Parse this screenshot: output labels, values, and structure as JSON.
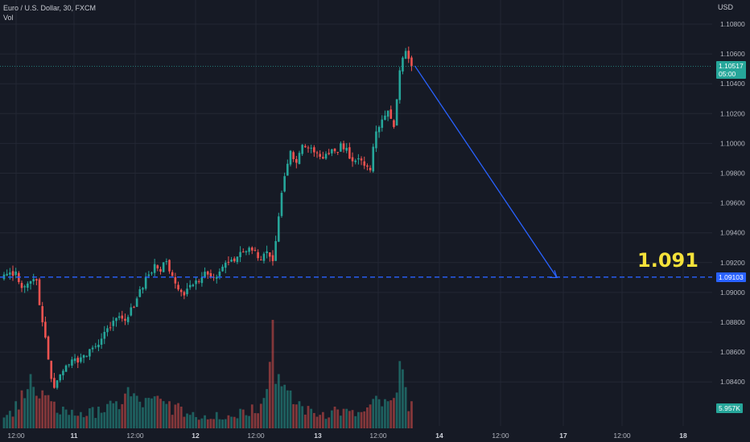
{
  "legend": {
    "title": "Euro / U.S. Dollar, 30, FXCM",
    "volume_label": "Vol"
  },
  "currency": "USD",
  "price_axis": {
    "ticks": [
      "1.10800",
      "1.10600",
      "1.10400",
      "1.10200",
      "1.10000",
      "1.09800",
      "1.09600",
      "1.09400",
      "1.09200",
      "1.09000",
      "1.08800",
      "1.08600",
      "1.08400"
    ]
  },
  "time_axis": {
    "ticks": [
      "12:00",
      "11",
      "12:00",
      "12",
      "12:00",
      "13",
      "12:00",
      "14",
      "12:00",
      "17",
      "12:00",
      "18"
    ]
  },
  "last_price": {
    "price": "1.10517",
    "countdown": "05:00",
    "color": "#26a69a"
  },
  "target_line": {
    "price": "1.09103",
    "label": "1.091",
    "color": "#2962ff",
    "label_color": "#f5e23a"
  },
  "volume_tag": {
    "value": "5.957K",
    "color": "#26a69a"
  },
  "colors": {
    "up": "#26a69a",
    "down": "#ef5350",
    "background": "#161a25",
    "arrow": "#2962ff"
  },
  "chart_data": {
    "type": "candlestick",
    "symbol": "EUR/USD",
    "timeframe": "30",
    "ylim": [
      1.0825,
      1.1095
    ],
    "path": [
      [
        0,
        1.0912
      ],
      [
        4,
        1.0914
      ],
      [
        6,
        1.0903
      ],
      [
        8,
        1.0906
      ],
      [
        10,
        1.0909
      ],
      [
        11,
        1.0908
      ],
      [
        13,
        1.088
      ],
      [
        15,
        1.0855
      ],
      [
        16,
        1.0842
      ],
      [
        17,
        1.0836
      ],
      [
        19,
        1.0845
      ],
      [
        21,
        1.0851
      ],
      [
        23,
        1.0855
      ],
      [
        25,
        1.0853
      ],
      [
        27,
        1.0858
      ],
      [
        29,
        1.0862
      ],
      [
        31,
        1.0864
      ],
      [
        33,
        1.0869
      ],
      [
        35,
        1.0876
      ],
      [
        37,
        1.0881
      ],
      [
        39,
        1.0884
      ],
      [
        41,
        1.0881
      ],
      [
        43,
        1.089
      ],
      [
        45,
        1.0896
      ],
      [
        47,
        1.0903
      ],
      [
        49,
        1.0912
      ],
      [
        51,
        1.0919
      ],
      [
        53,
        1.0914
      ],
      [
        55,
        1.0921
      ],
      [
        57,
        1.0911
      ],
      [
        59,
        1.0902
      ],
      [
        61,
        1.0898
      ],
      [
        63,
        1.0905
      ],
      [
        65,
        1.0908
      ],
      [
        67,
        1.091
      ],
      [
        69,
        1.0912
      ],
      [
        71,
        1.091
      ],
      [
        73,
        1.0914
      ],
      [
        75,
        1.092
      ],
      [
        77,
        1.0922
      ],
      [
        79,
        1.0924
      ],
      [
        81,
        1.0927
      ],
      [
        83,
        1.093
      ],
      [
        85,
        1.0928
      ],
      [
        86,
        1.0923
      ],
      [
        88,
        1.0926
      ],
      [
        90,
        1.0924
      ],
      [
        91,
        1.0921
      ],
      [
        93,
        1.0951
      ],
      [
        95,
        1.0978
      ],
      [
        97,
        1.0995
      ],
      [
        99,
        1.0987
      ],
      [
        101,
        1.0999
      ],
      [
        103,
        1.0997
      ],
      [
        105,
        1.0994
      ],
      [
        107,
        1.0991
      ],
      [
        109,
        1.0993
      ],
      [
        111,
        1.0996
      ],
      [
        113,
        1.0994
      ],
      [
        114,
        1.1
      ],
      [
        116,
        1.0997
      ],
      [
        118,
        1.0988
      ],
      [
        120,
        1.099
      ],
      [
        122,
        1.0985
      ],
      [
        124,
        1.0982
      ],
      [
        126,
        1.1008
      ],
      [
        128,
        1.1016
      ],
      [
        130,
        1.1022
      ],
      [
        132,
        1.1011
      ],
      [
        134,
        1.1049
      ],
      [
        136,
        1.1062
      ],
      [
        138,
        1.1052
      ]
    ],
    "volume_peaks": [
      [
        0,
        0.1
      ],
      [
        4,
        0.25
      ],
      [
        6,
        0.35
      ],
      [
        9,
        0.5
      ],
      [
        11,
        0.3
      ],
      [
        13,
        0.35
      ],
      [
        16,
        0.25
      ],
      [
        20,
        0.2
      ],
      [
        26,
        0.15
      ],
      [
        32,
        0.2
      ],
      [
        38,
        0.25
      ],
      [
        42,
        0.38
      ],
      [
        45,
        0.3
      ],
      [
        48,
        0.28
      ],
      [
        52,
        0.3
      ],
      [
        56,
        0.25
      ],
      [
        60,
        0.2
      ],
      [
        64,
        0.15
      ],
      [
        68,
        0.12
      ],
      [
        72,
        0.15
      ],
      [
        76,
        0.12
      ],
      [
        80,
        0.18
      ],
      [
        84,
        0.22
      ],
      [
        88,
        0.28
      ],
      [
        91,
        1.0
      ],
      [
        93,
        0.5
      ],
      [
        96,
        0.35
      ],
      [
        100,
        0.25
      ],
      [
        104,
        0.18
      ],
      [
        108,
        0.15
      ],
      [
        112,
        0.2
      ],
      [
        116,
        0.18
      ],
      [
        120,
        0.15
      ],
      [
        124,
        0.22
      ],
      [
        126,
        0.3
      ],
      [
        130,
        0.25
      ],
      [
        133,
        0.33
      ],
      [
        134,
        0.62
      ],
      [
        136,
        0.38
      ],
      [
        138,
        0.25
      ]
    ],
    "projection": {
      "from_index": 138,
      "from_price": 1.1052,
      "to_time_tick": "17",
      "to_price": 1.091
    }
  }
}
